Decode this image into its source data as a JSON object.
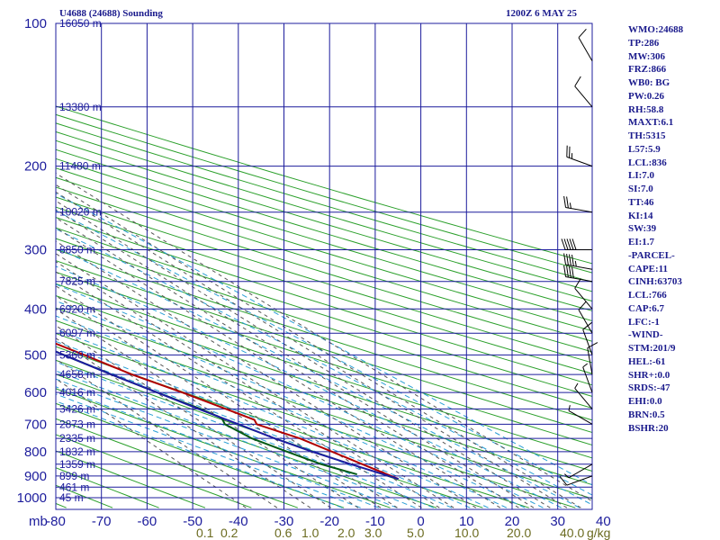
{
  "header": {
    "station_title": "U4688 (24688) Sounding",
    "valid_time": "1200Z  6 MAY 25"
  },
  "indices": [
    "WMO:24688",
    "TP:286",
    "MW:306",
    "FRZ:866",
    "WB0: BG",
    "PW:0.26",
    "RH:58.8",
    "MAXT:6.1",
    "TH:5315",
    "L57:5.9",
    "LCL:836",
    "LI:7.0",
    "SI:7.0",
    "TT:46",
    "KI:14",
    "SW:39",
    "EI:1.7",
    "-PARCEL-",
    "CAPE:11",
    "CINH:63703",
    "LCL:766",
    "CAP:6.7",
    "LFC:-1",
    "-WIND-",
    "STM:201/9",
    "HEL:-61",
    "SHR+:0.0",
    "SRDS:-47",
    "EHI:0.0",
    "BRN:0.5",
    "BSHR:20"
  ],
  "colors": {
    "axis_text": "#1c1c9c",
    "grid": "#1c1c9c",
    "temperature": "#b00000",
    "dewpoint": "#005a14",
    "parcel": "#1c1ca0",
    "dry_adiabat": "#2ca02c",
    "moist_adiabat": "#2a9fd6",
    "mixing_ratio": "#555555",
    "wind_barb": "#000000"
  },
  "chart_data": {
    "type": "skew-t log-p sounding",
    "title": "U4688 (24688) Sounding",
    "pressure_unit_label": "mb",
    "mixing_ratio_unit_label": "g/kg",
    "pressure_ticks": [
      100,
      200,
      300,
      400,
      500,
      600,
      700,
      800,
      900,
      1000
    ],
    "temperature_ticks": [
      -80,
      -70,
      -60,
      -50,
      -40,
      -30,
      -20,
      -10,
      0,
      10,
      20,
      30,
      40
    ],
    "temperature_tick_labels": [
      "-80",
      "-70",
      "-60",
      "-50",
      "-40",
      "-30",
      "-20",
      "-10",
      "0",
      "10",
      "20",
      "30",
      "40"
    ],
    "pressure_range": [
      100,
      1050
    ],
    "height_labels": [
      {
        "p": 100,
        "label": "16050 m"
      },
      {
        "p": 150,
        "label": "13380 m"
      },
      {
        "p": 200,
        "label": "11480 m"
      },
      {
        "p": 250,
        "label": "10020 m"
      },
      {
        "p": 300,
        "label": "8850 m"
      },
      {
        "p": 350,
        "label": "7825 m"
      },
      {
        "p": 400,
        "label": "6920 m"
      },
      {
        "p": 450,
        "label": "6097 m"
      },
      {
        "p": 500,
        "label": "5360 m"
      },
      {
        "p": 550,
        "label": "4658 m"
      },
      {
        "p": 600,
        "label": "4016 m"
      },
      {
        "p": 650,
        "label": "3426 m"
      },
      {
        "p": 700,
        "label": "2873 m"
      },
      {
        "p": 750,
        "label": "2335 m"
      },
      {
        "p": 800,
        "label": "1832 m"
      },
      {
        "p": 850,
        "label": "1359 m"
      },
      {
        "p": 900,
        "label": "899 m"
      },
      {
        "p": 950,
        "label": "461 m"
      },
      {
        "p": 1000,
        "label": "45 m"
      }
    ],
    "mixing_ratio_labels": [
      "0.1",
      "0.2",
      "0.6",
      "1.0",
      "2.0",
      "3.0",
      "5.0",
      "10.0",
      "20.0",
      "40.0"
    ],
    "series": [
      {
        "name": "temperature",
        "points": [
          {
            "p": 913,
            "t": 0.3
          },
          {
            "p": 850,
            "t": -3.5
          },
          {
            "p": 750,
            "t": -10
          },
          {
            "p": 700,
            "t": -15.5
          },
          {
            "p": 685,
            "t": -14.8
          },
          {
            "p": 650,
            "t": -18
          },
          {
            "p": 600,
            "t": -23
          },
          {
            "p": 550,
            "t": -29
          },
          {
            "p": 500,
            "t": -34
          },
          {
            "p": 450,
            "t": -40
          },
          {
            "p": 400,
            "t": -46
          },
          {
            "p": 350,
            "t": -52
          },
          {
            "p": 340,
            "t": -52.5
          },
          {
            "p": 300,
            "t": -55.5
          },
          {
            "p": 285,
            "t": -57.5
          },
          {
            "p": 270,
            "t": -58
          },
          {
            "p": 230,
            "t": -57
          },
          {
            "p": 215,
            "t": -56
          },
          {
            "p": 200,
            "t": -53.5
          },
          {
            "p": 185,
            "t": -52.5
          },
          {
            "p": 150,
            "t": -55
          },
          {
            "p": 130,
            "t": -57.5
          },
          {
            "p": 100,
            "t": -63.5
          }
        ]
      },
      {
        "name": "dewpoint",
        "points": [
          {
            "p": 893,
            "t": -7.5
          },
          {
            "p": 850,
            "t": -12.5
          },
          {
            "p": 800,
            "t": -16.5
          },
          {
            "p": 750,
            "t": -20.5
          },
          {
            "p": 700,
            "t": -22.5
          },
          {
            "p": 680,
            "t": -21.5
          },
          {
            "p": 650,
            "t": -23.5
          },
          {
            "p": 600,
            "t": -28.5
          },
          {
            "p": 550,
            "t": -33.5
          },
          {
            "p": 500,
            "t": -38.5
          },
          {
            "p": 450,
            "t": -43.5
          },
          {
            "p": 400,
            "t": -48.5
          },
          {
            "p": 350,
            "t": -54
          },
          {
            "p": 330,
            "t": -58
          },
          {
            "p": 300,
            "t": -64
          },
          {
            "p": 285,
            "t": -68
          },
          {
            "p": 270,
            "t": -70
          },
          {
            "p": 230,
            "t": -72
          },
          {
            "p": 210,
            "t": -71
          },
          {
            "p": 200,
            "t": -69
          },
          {
            "p": 180,
            "t": -75
          },
          {
            "p": 160,
            "t": -79
          },
          {
            "p": 140,
            "t": -82
          },
          {
            "p": 110,
            "t": -84
          },
          {
            "p": 100,
            "t": -85.5
          }
        ]
      },
      {
        "name": "parcel",
        "points": [
          {
            "p": 913,
            "t": 0.3
          },
          {
            "p": 850,
            "t": -6
          },
          {
            "p": 800,
            "t": -11
          },
          {
            "p": 750,
            "t": -15.5
          },
          {
            "p": 700,
            "t": -19.5
          },
          {
            "p": 650,
            "t": -24
          },
          {
            "p": 600,
            "t": -28.5
          },
          {
            "p": 550,
            "t": -33.5
          },
          {
            "p": 500,
            "t": -38.5
          },
          {
            "p": 450,
            "t": -44
          },
          {
            "p": 400,
            "t": -50
          },
          {
            "p": 350,
            "t": -57
          },
          {
            "p": 300,
            "t": -65
          },
          {
            "p": 250,
            "t": -74
          },
          {
            "p": 230,
            "t": -78
          }
        ]
      }
    ],
    "wind_barbs": [
      {
        "p": 900,
        "dir": 250,
        "kt": 10
      },
      {
        "p": 850,
        "dir": 240,
        "kt": 5
      },
      {
        "p": 700,
        "dir": 300,
        "kt": 5
      },
      {
        "p": 650,
        "dir": 320,
        "kt": 5
      },
      {
        "p": 600,
        "dir": 340,
        "kt": 5
      },
      {
        "p": 550,
        "dir": 350,
        "kt": 10
      },
      {
        "p": 500,
        "dir": 340,
        "kt": 10
      },
      {
        "p": 450,
        "dir": 330,
        "kt": 10
      },
      {
        "p": 400,
        "dir": 320,
        "kt": 10
      },
      {
        "p": 350,
        "dir": 280,
        "kt": 40
      },
      {
        "p": 330,
        "dir": 280,
        "kt": 45
      },
      {
        "p": 300,
        "dir": 270,
        "kt": 50
      },
      {
        "p": 250,
        "dir": 280,
        "kt": 25
      },
      {
        "p": 200,
        "dir": 290,
        "kt": 25
      },
      {
        "p": 150,
        "dir": 320,
        "kt": 10
      },
      {
        "p": 120,
        "dir": 330,
        "kt": 10
      }
    ],
    "grid": true
  }
}
